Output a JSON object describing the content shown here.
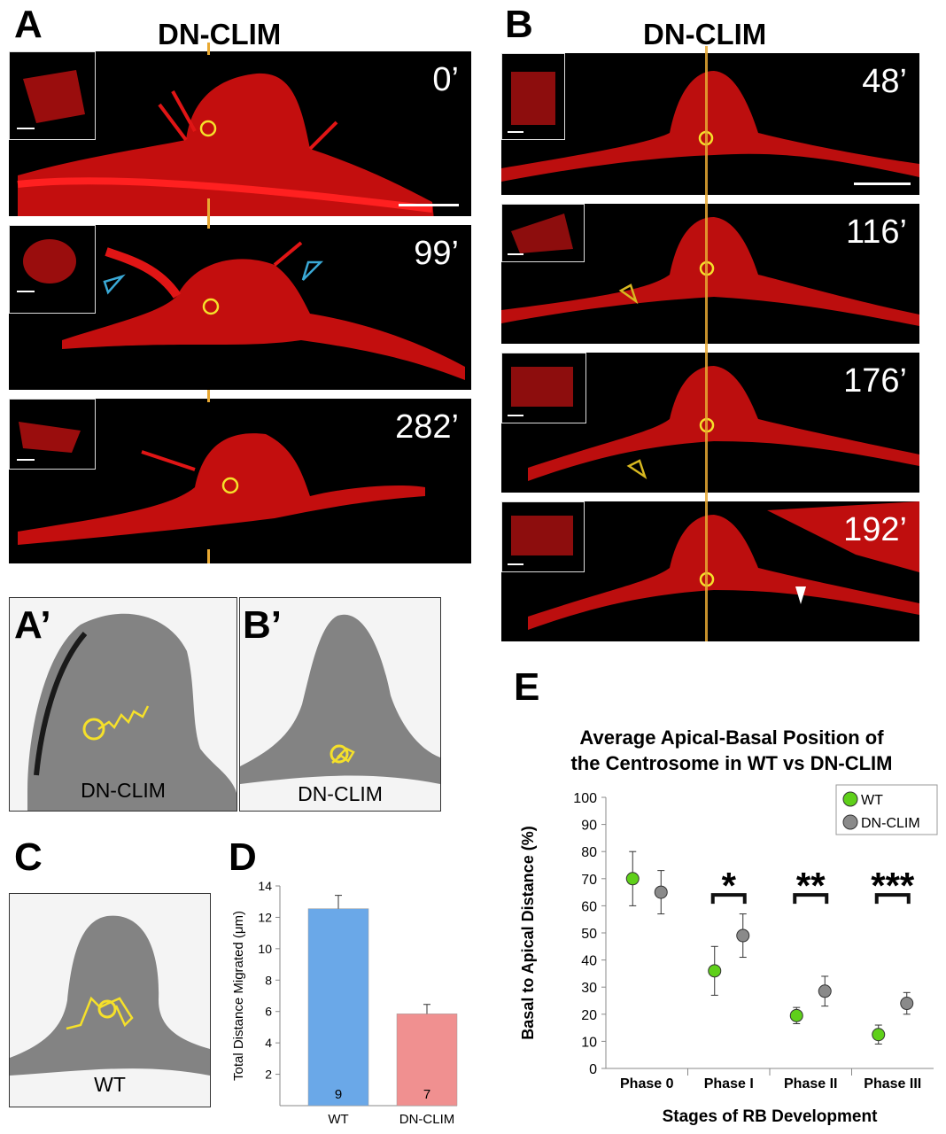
{
  "panel_A": {
    "label": "A",
    "title": "DN-CLIM",
    "frames": [
      {
        "time": "0’"
      },
      {
        "time": "99’"
      },
      {
        "time": "282’"
      }
    ]
  },
  "panel_B": {
    "label": "B",
    "title": "DN-CLIM",
    "frames": [
      {
        "time": "48’"
      },
      {
        "time": "116’"
      },
      {
        "time": "176’"
      },
      {
        "time": "192’"
      }
    ]
  },
  "panel_A_prime": {
    "label": "A’",
    "caption": "DN-CLIM"
  },
  "panel_B_prime": {
    "label": "B’",
    "caption": "DN-CLIM"
  },
  "panel_C": {
    "label": "C",
    "caption": "WT"
  },
  "panel_D": {
    "label": "D"
  },
  "panel_E": {
    "label": "E"
  },
  "colors": {
    "cell": "#e01010",
    "centrosome": "#f5e02a",
    "arrow_blue": "#3aa9d6",
    "arrow_yellow": "#d8b820",
    "wt_green": "#5fd01a",
    "dn_gray": "#8a8a8a"
  },
  "chart_data": [
    {
      "panel": "D",
      "type": "bar",
      "ylabel": "Total Distance Migrated (μm)",
      "categories": [
        "WT",
        "DN-CLIM"
      ],
      "values": [
        12.55,
        5.85
      ],
      "errors": [
        0.85,
        0.6
      ],
      "n_labels": [
        "9",
        "7"
      ],
      "yticks": [
        "2",
        "4",
        "6",
        "8",
        "10",
        "12",
        "14"
      ],
      "ylim": [
        0,
        14
      ],
      "colors": [
        "#6aa8e8",
        "#f09090"
      ]
    },
    {
      "panel": "E",
      "type": "scatter",
      "title": "Average Apical-Basal Position of the Centrosome in WT vs DN-CLIM",
      "title_lines": [
        "Average Apical-Basal Position of",
        "the Centrosome in WT vs DN-CLIM"
      ],
      "xlabel": "Stages of RB Development",
      "ylabel": "Basal to Apical Distance (%)",
      "categories": [
        "Phase 0",
        "Phase I",
        "Phase II",
        "Phase III"
      ],
      "ylim": [
        0,
        100
      ],
      "yticks": [
        "0",
        "10",
        "20",
        "30",
        "40",
        "50",
        "60",
        "70",
        "80",
        "90",
        "100"
      ],
      "series": [
        {
          "name": "WT",
          "values": [
            70,
            36,
            19.5,
            12.5
          ],
          "errors": [
            10,
            9,
            3,
            3.5
          ],
          "color": "#5fd01a"
        },
        {
          "name": "DN-CLIM",
          "values": [
            65,
            49,
            28.5,
            24
          ],
          "errors": [
            8,
            8,
            5.5,
            4
          ],
          "color": "#8a8a8a"
        }
      ],
      "significance": [
        "",
        "*",
        "**",
        "***"
      ],
      "legend_position": "top-right"
    }
  ]
}
